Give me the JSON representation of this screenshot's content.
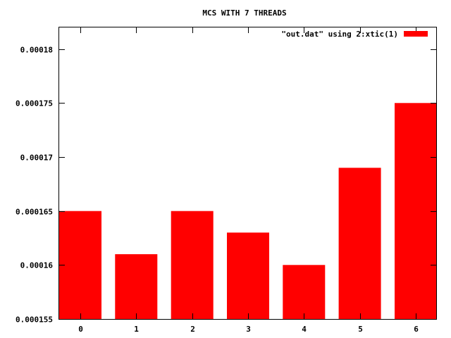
{
  "chart_data": {
    "type": "bar",
    "title": "MCS WITH 7 THREADS",
    "categories": [
      "0",
      "1",
      "2",
      "3",
      "4",
      "5",
      "6"
    ],
    "series": [
      {
        "name": "\"out.dat\" using 2:xtic(1)",
        "color": "#ff0000",
        "values": [
          0.000165,
          0.000161,
          0.000165,
          0.000163,
          0.00016,
          0.000169,
          0.000175
        ]
      }
    ],
    "ylim": [
      0.000155,
      0.000182
    ],
    "yticks": [
      0.000155,
      0.00016,
      0.000165,
      0.00017,
      0.000175,
      0.00018
    ],
    "ytick_labels": [
      "0.000155",
      "0.00016",
      "0.000165",
      "0.00017",
      "0.000175",
      "0.00018"
    ],
    "xlabel": "",
    "ylabel": "",
    "grid": false,
    "legend_position": "top-right"
  }
}
